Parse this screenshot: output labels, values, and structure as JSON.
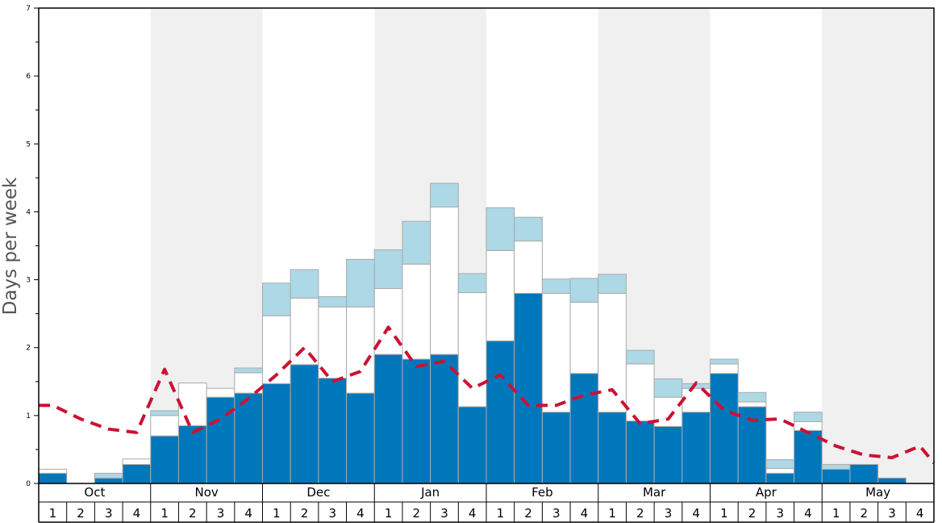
{
  "chart_data": {
    "type": "bar",
    "ylabel": "Days per week",
    "ylim": [
      0,
      7
    ],
    "yticks": [
      "0",
      "1",
      "2",
      "3",
      "4",
      "5",
      "6",
      "7"
    ],
    "months": [
      "Oct",
      "Nov",
      "Dec",
      "Jan",
      "Feb",
      "Mar",
      "Apr",
      "May"
    ],
    "weeks": [
      "1",
      "2",
      "3",
      "4"
    ],
    "series": [
      {
        "color": "#0077bb",
        "values": [
          0.15,
          0,
          0.08,
          0.28,
          0.7,
          0.85,
          1.27,
          1.33,
          1.47,
          1.75,
          1.55,
          1.33,
          1.9,
          1.83,
          1.9,
          1.13,
          2.1,
          2.8,
          1.05,
          1.62,
          1.05,
          0.92,
          0.84,
          1.05,
          1.62,
          1.13,
          0.15,
          0.78,
          0.21,
          0.28,
          0.08,
          0
        ]
      },
      {
        "color": "#ffffff",
        "values": [
          0.06,
          0,
          0,
          0.08,
          0.3,
          0.63,
          0.13,
          0.3,
          1.0,
          0.98,
          1.05,
          1.27,
          0.97,
          1.4,
          2.17,
          1.68,
          1.33,
          0.77,
          1.75,
          1.05,
          1.75,
          0.84,
          0.43,
          0.35,
          0.14,
          0.07,
          0.07,
          0.13,
          0,
          0,
          0,
          0
        ]
      },
      {
        "color": "#add8e6",
        "values": [
          0,
          0,
          0.07,
          0,
          0.07,
          0,
          0,
          0.07,
          0.48,
          0.42,
          0.15,
          0.7,
          0.57,
          0.63,
          0.35,
          0.28,
          0.63,
          0.35,
          0.21,
          0.35,
          0.28,
          0.2,
          0.27,
          0.07,
          0.07,
          0.14,
          0.13,
          0.14,
          0.07,
          0,
          0,
          0
        ]
      }
    ],
    "line": {
      "style": "dashed",
      "color": "#cc1133",
      "values": [
        1.15,
        0.95,
        0.8,
        0.75,
        1.68,
        0.75,
        0.95,
        1.25,
        1.6,
        2.0,
        1.5,
        1.65,
        2.3,
        1.72,
        1.8,
        1.4,
        1.6,
        1.15,
        1.15,
        1.3,
        1.38,
        0.88,
        0.95,
        1.48,
        1.08,
        0.93,
        0.95,
        0.75,
        0.55,
        0.42,
        0.38,
        0.55
      ]
    },
    "grid": false,
    "legend": "none"
  }
}
